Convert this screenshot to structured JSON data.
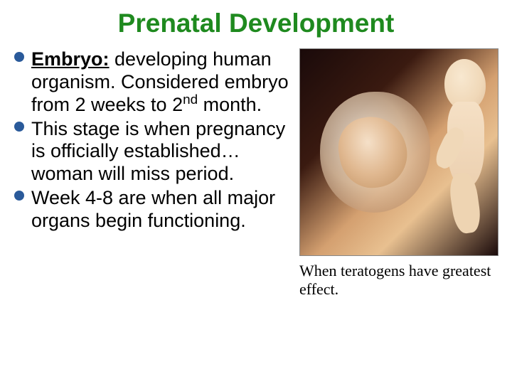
{
  "title": {
    "text": "Prenatal Development",
    "color": "#1f8a1f",
    "fontsize": 37
  },
  "bullets": {
    "dot_color": "#2a5a9a",
    "text_color": "#000000",
    "fontsize": 27,
    "items": [
      {
        "term": "Embryo:",
        "rest_html": "  developing human organism. Considered embryo from 2 weeks to 2<span class=\"sup\">nd</span> month."
      },
      {
        "term": "",
        "rest_html": "This stage is when pregnancy is officially established…woman will miss period."
      },
      {
        "term": "",
        "rest_html": "Week 4-8 are when all major organs begin functioning."
      }
    ]
  },
  "image": {
    "alt": "Embryo in amniotic sac and fetus illustration",
    "caption": "When teratogens have greatest effect.",
    "caption_fontsize": 22,
    "caption_color": "#000000"
  }
}
